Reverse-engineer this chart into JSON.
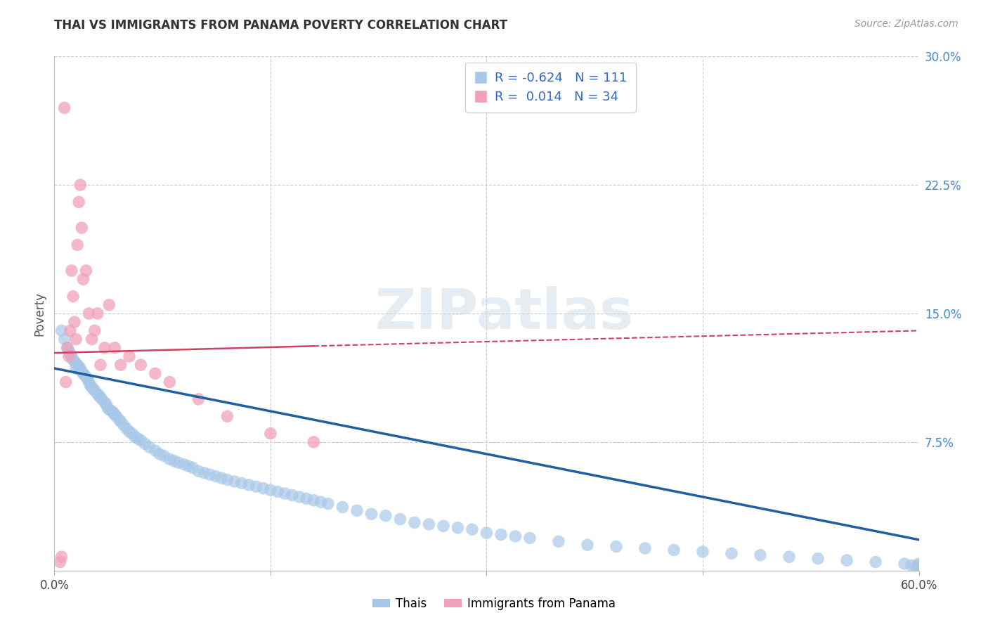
{
  "title": "THAI VS IMMIGRANTS FROM PANAMA POVERTY CORRELATION CHART",
  "source": "Source: ZipAtlas.com",
  "ylabel": "Poverty",
  "watermark": "ZIPatlas",
  "xlim": [
    0.0,
    0.6
  ],
  "ylim": [
    0.0,
    0.3
  ],
  "yticks": [
    0.0,
    0.075,
    0.15,
    0.225,
    0.3
  ],
  "yticklabels_right": [
    "",
    "7.5%",
    "15.0%",
    "22.5%",
    "30.0%"
  ],
  "xtick_labels": [
    "0.0%",
    "",
    "",
    "",
    "60.0%"
  ],
  "xtick_vals": [
    0.0,
    0.15,
    0.3,
    0.45,
    0.6
  ],
  "grid_color": "#cccccc",
  "background_color": "#ffffff",
  "blue_color": "#a8c8e8",
  "pink_color": "#f0a0b8",
  "blue_line_color": "#2060a0",
  "pink_line_color": "#d04060",
  "legend_R_blue": "-0.624",
  "legend_N_blue": "111",
  "legend_R_pink": "0.014",
  "legend_N_pink": "34",
  "blue_line_y_start": 0.118,
  "blue_line_y_end": 0.018,
  "pink_line_x_solid_end": 0.18,
  "pink_line_y_start": 0.127,
  "pink_line_y_solid_end": 0.131,
  "pink_line_y_dash_end": 0.14,
  "blue_scatter_x": [
    0.005,
    0.007,
    0.009,
    0.01,
    0.011,
    0.012,
    0.013,
    0.014,
    0.015,
    0.015,
    0.016,
    0.017,
    0.018,
    0.019,
    0.02,
    0.021,
    0.022,
    0.023,
    0.024,
    0.025,
    0.026,
    0.027,
    0.028,
    0.03,
    0.031,
    0.032,
    0.033,
    0.035,
    0.036,
    0.037,
    0.038,
    0.04,
    0.041,
    0.042,
    0.043,
    0.045,
    0.046,
    0.048,
    0.05,
    0.052,
    0.054,
    0.056,
    0.058,
    0.06,
    0.063,
    0.066,
    0.07,
    0.073,
    0.076,
    0.08,
    0.083,
    0.086,
    0.09,
    0.093,
    0.096,
    0.1,
    0.104,
    0.108,
    0.112,
    0.116,
    0.12,
    0.125,
    0.13,
    0.135,
    0.14,
    0.145,
    0.15,
    0.155,
    0.16,
    0.165,
    0.17,
    0.175,
    0.18,
    0.185,
    0.19,
    0.2,
    0.21,
    0.22,
    0.23,
    0.24,
    0.25,
    0.26,
    0.27,
    0.28,
    0.29,
    0.3,
    0.31,
    0.32,
    0.33,
    0.35,
    0.37,
    0.39,
    0.41,
    0.43,
    0.45,
    0.47,
    0.49,
    0.51,
    0.53,
    0.55,
    0.57,
    0.59,
    0.595,
    0.598,
    0.6,
    0.6,
    0.6,
    0.6,
    0.6,
    0.6,
    0.6
  ],
  "blue_scatter_y": [
    0.14,
    0.135,
    0.13,
    0.128,
    0.127,
    0.125,
    0.123,
    0.122,
    0.121,
    0.118,
    0.12,
    0.119,
    0.118,
    0.116,
    0.115,
    0.114,
    0.113,
    0.112,
    0.11,
    0.108,
    0.107,
    0.106,
    0.105,
    0.103,
    0.102,
    0.101,
    0.1,
    0.098,
    0.097,
    0.095,
    0.094,
    0.093,
    0.092,
    0.091,
    0.09,
    0.088,
    0.087,
    0.085,
    0.083,
    0.081,
    0.08,
    0.078,
    0.077,
    0.076,
    0.074,
    0.072,
    0.07,
    0.068,
    0.067,
    0.065,
    0.064,
    0.063,
    0.062,
    0.061,
    0.06,
    0.058,
    0.057,
    0.056,
    0.055,
    0.054,
    0.053,
    0.052,
    0.051,
    0.05,
    0.049,
    0.048,
    0.047,
    0.046,
    0.045,
    0.044,
    0.043,
    0.042,
    0.041,
    0.04,
    0.039,
    0.037,
    0.035,
    0.033,
    0.032,
    0.03,
    0.028,
    0.027,
    0.026,
    0.025,
    0.024,
    0.022,
    0.021,
    0.02,
    0.019,
    0.017,
    0.015,
    0.014,
    0.013,
    0.012,
    0.011,
    0.01,
    0.009,
    0.008,
    0.007,
    0.006,
    0.005,
    0.004,
    0.003,
    0.002,
    0.001,
    0.002,
    0.003,
    0.004,
    0.002,
    0.003,
    0.001
  ],
  "pink_scatter_x": [
    0.004,
    0.005,
    0.007,
    0.008,
    0.009,
    0.01,
    0.011,
    0.012,
    0.013,
    0.014,
    0.015,
    0.016,
    0.017,
    0.018,
    0.019,
    0.02,
    0.022,
    0.024,
    0.026,
    0.028,
    0.03,
    0.032,
    0.035,
    0.038,
    0.042,
    0.046,
    0.052,
    0.06,
    0.07,
    0.08,
    0.1,
    0.12,
    0.15,
    0.18
  ],
  "pink_scatter_y": [
    0.005,
    0.008,
    0.27,
    0.11,
    0.13,
    0.125,
    0.14,
    0.175,
    0.16,
    0.145,
    0.135,
    0.19,
    0.215,
    0.225,
    0.2,
    0.17,
    0.175,
    0.15,
    0.135,
    0.14,
    0.15,
    0.12,
    0.13,
    0.155,
    0.13,
    0.12,
    0.125,
    0.12,
    0.115,
    0.11,
    0.1,
    0.09,
    0.08,
    0.075
  ]
}
